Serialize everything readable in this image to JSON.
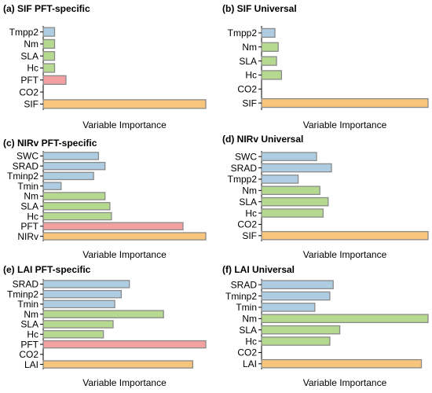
{
  "colors": {
    "vegetation": "#aecde3",
    "leaf_trait": "#b5d98f",
    "pft": "#f2a0a0",
    "target": "#f8c57c",
    "edge": "#8a8a8a"
  },
  "chart_data": [
    {
      "type": "bar",
      "orientation": "horizontal",
      "title": "(a) SIF PFT-specific",
      "xlabel": "Variable Importance",
      "categories": [
        "Tmpp2",
        "Nm",
        "SLA",
        "Hc",
        "PFT",
        "CO2",
        "SIF"
      ],
      "values": [
        0.07,
        0.07,
        0.07,
        0.07,
        0.14,
        0.0,
        1.0
      ],
      "groups": [
        "vegetation",
        "leaf_trait",
        "leaf_trait",
        "leaf_trait",
        "pft",
        "none",
        "target"
      ],
      "xlim": [
        0,
        1
      ]
    },
    {
      "type": "bar",
      "orientation": "horizontal",
      "title": "(b) SIF Universal",
      "xlabel": "Variable Importance",
      "categories": [
        "Tmpp2",
        "Nm",
        "SLA",
        "Hc",
        "CO2",
        "SIF"
      ],
      "values": [
        0.08,
        0.1,
        0.09,
        0.12,
        0.0,
        1.0
      ],
      "groups": [
        "vegetation",
        "leaf_trait",
        "leaf_trait",
        "leaf_trait",
        "none",
        "target"
      ],
      "xlim": [
        0,
        1
      ]
    },
    {
      "type": "bar",
      "orientation": "horizontal",
      "title": "(c) NIRv PFT-specific",
      "xlabel": "Variable Importance",
      "categories": [
        "SWC",
        "SRAD",
        "Tminp2",
        "Tmin",
        "Nm",
        "SLA",
        "Hc",
        "PFT",
        "NIRv"
      ],
      "values": [
        0.34,
        0.38,
        0.31,
        0.11,
        0.38,
        0.41,
        0.42,
        0.86,
        1.0
      ],
      "groups": [
        "vegetation",
        "vegetation",
        "vegetation",
        "vegetation",
        "leaf_trait",
        "leaf_trait",
        "leaf_trait",
        "pft",
        "target"
      ],
      "xlim": [
        0,
        1
      ]
    },
    {
      "type": "bar",
      "orientation": "horizontal",
      "title": "(d) NIRv Universal",
      "xlabel": "Variable Importance",
      "categories": [
        "SWC",
        "SRAD",
        "Tmpp2",
        "Nm",
        "SLA",
        "Hc",
        "CO2",
        "SIF"
      ],
      "values": [
        0.33,
        0.42,
        0.22,
        0.35,
        0.4,
        0.37,
        0.0,
        1.0
      ],
      "groups": [
        "vegetation",
        "vegetation",
        "vegetation",
        "leaf_trait",
        "leaf_trait",
        "leaf_trait",
        "none",
        "target"
      ],
      "xlim": [
        0,
        1
      ]
    },
    {
      "type": "bar",
      "orientation": "horizontal",
      "title": "(e) LAI PFT-specific",
      "xlabel": "Variable Importance",
      "categories": [
        "SRAD",
        "Tminp2",
        "Tmin",
        "Nm",
        "SLA",
        "Hc",
        "PFT",
        "CO2",
        "LAI"
      ],
      "values": [
        0.53,
        0.48,
        0.44,
        0.74,
        0.43,
        0.37,
        1.0,
        0.0,
        0.92
      ],
      "groups": [
        "vegetation",
        "vegetation",
        "vegetation",
        "leaf_trait",
        "leaf_trait",
        "leaf_trait",
        "pft",
        "none",
        "target"
      ],
      "xlim": [
        0,
        1
      ]
    },
    {
      "type": "bar",
      "orientation": "horizontal",
      "title": "(f) LAI Universal",
      "xlabel": "Variable Importance",
      "categories": [
        "SRAD",
        "Tminp2",
        "Tmin",
        "Nm",
        "SLA",
        "Hc",
        "CO2",
        "LAI"
      ],
      "values": [
        0.43,
        0.41,
        0.32,
        1.0,
        0.47,
        0.41,
        0.0,
        0.96
      ],
      "groups": [
        "vegetation",
        "vegetation",
        "vegetation",
        "leaf_trait",
        "leaf_trait",
        "leaf_trait",
        "none",
        "target"
      ],
      "xlim": [
        0,
        1
      ]
    }
  ]
}
